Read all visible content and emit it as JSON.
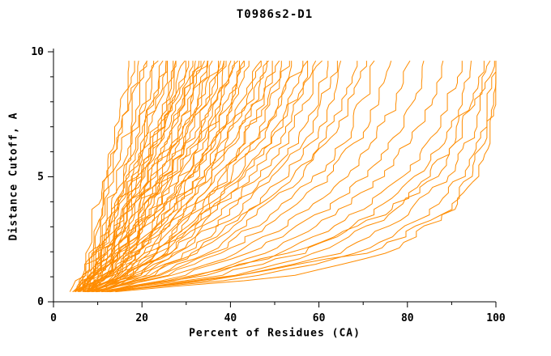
{
  "figure": {
    "title": "T0986s2-D1"
  },
  "chart_data": {
    "type": "line",
    "title": "T0986s2-D1",
    "xlabel": "Percent of Residues (CA)",
    "ylabel": "Distance Cutoff, A",
    "xlim": [
      0,
      100
    ],
    "ylim": [
      0,
      10
    ],
    "x_major_ticks": [
      0,
      20,
      40,
      60,
      80,
      100
    ],
    "x_minor_ticks": [
      10,
      30,
      50,
      70,
      90
    ],
    "y_major_ticks": [
      0,
      5,
      10
    ],
    "y_minor_ticks": [
      1,
      2,
      3,
      4,
      6,
      7,
      8,
      9
    ],
    "grid": false,
    "legend": "none",
    "colors": {
      "curve": "#ff8c00",
      "axis": "#000000",
      "background": "#ffffff"
    },
    "series_format": "each series entry lists x (percent of residues) at the y_anchors distance cutoffs",
    "y_anchors": [
      0.4,
      1,
      2,
      3.5,
      5,
      6.5,
      8,
      9.7
    ],
    "series": [
      [
        5,
        6,
        7,
        9,
        11,
        13,
        15,
        17
      ],
      [
        6,
        7,
        8,
        10,
        12,
        14,
        16,
        18
      ],
      [
        5,
        6,
        8,
        10,
        12,
        15,
        17,
        19
      ],
      [
        6,
        7,
        9,
        11,
        13,
        16,
        18,
        20
      ],
      [
        5,
        7,
        9,
        12,
        14,
        17,
        19,
        21
      ],
      [
        6,
        8,
        10,
        12,
        15,
        18,
        20,
        22
      ],
      [
        5,
        7,
        10,
        13,
        16,
        18,
        21,
        23
      ],
      [
        6,
        8,
        10,
        13,
        16,
        19,
        22,
        24
      ],
      [
        7,
        9,
        11,
        14,
        17,
        20,
        23,
        25
      ],
      [
        5,
        8,
        11,
        14,
        18,
        21,
        24,
        26
      ],
      [
        6,
        9,
        12,
        15,
        18,
        22,
        25,
        27
      ],
      [
        6,
        9,
        12,
        16,
        19,
        23,
        26,
        28
      ],
      [
        7,
        10,
        13,
        16,
        20,
        23,
        26,
        29
      ],
      [
        5,
        8,
        12,
        16,
        20,
        24,
        27,
        30
      ],
      [
        6,
        9,
        13,
        17,
        21,
        25,
        28,
        31
      ],
      [
        7,
        10,
        14,
        18,
        22,
        26,
        29,
        32
      ],
      [
        6,
        10,
        14,
        18,
        23,
        27,
        30,
        33
      ],
      [
        7,
        11,
        15,
        19,
        24,
        28,
        31,
        34
      ],
      [
        6,
        10,
        15,
        20,
        24,
        29,
        32,
        35
      ],
      [
        7,
        11,
        16,
        21,
        26,
        30,
        33,
        36
      ],
      [
        8,
        12,
        16,
        21,
        26,
        31,
        34,
        37
      ],
      [
        6,
        11,
        16,
        22,
        27,
        32,
        35,
        38
      ],
      [
        7,
        12,
        17,
        23,
        28,
        33,
        36,
        39
      ],
      [
        8,
        13,
        18,
        24,
        29,
        34,
        37,
        40
      ],
      [
        7,
        12,
        18,
        24,
        30,
        35,
        38,
        41
      ],
      [
        8,
        13,
        19,
        25,
        31,
        36,
        39,
        42
      ],
      [
        7,
        13,
        19,
        26,
        32,
        37,
        40,
        43
      ],
      [
        8,
        14,
        20,
        27,
        33,
        38,
        41,
        44
      ],
      [
        7,
        14,
        21,
        28,
        34,
        39,
        43,
        46
      ],
      [
        8,
        15,
        22,
        29,
        36,
        41,
        45,
        48
      ],
      [
        7,
        15,
        23,
        31,
        38,
        43,
        47,
        50
      ],
      [
        8,
        16,
        24,
        32,
        39,
        45,
        49,
        52
      ],
      [
        9,
        17,
        25,
        33,
        41,
        47,
        51,
        54
      ],
      [
        8,
        17,
        26,
        35,
        43,
        49,
        53,
        56
      ],
      [
        9,
        18,
        27,
        36,
        44,
        51,
        55,
        58
      ],
      [
        8,
        18,
        28,
        38,
        46,
        53,
        57,
        60
      ],
      [
        9,
        19,
        29,
        39,
        48,
        55,
        59,
        62
      ],
      [
        10,
        20,
        31,
        41,
        50,
        57,
        61,
        64
      ],
      [
        9,
        20,
        32,
        43,
        52,
        59,
        63,
        66
      ],
      [
        10,
        21,
        33,
        44,
        54,
        61,
        65,
        68
      ],
      [
        9,
        22,
        35,
        46,
        56,
        63,
        67,
        70
      ],
      [
        10,
        23,
        37,
        49,
        59,
        66,
        70,
        73
      ],
      [
        11,
        25,
        39,
        52,
        62,
        69,
        73,
        76
      ],
      [
        10,
        26,
        42,
        56,
        66,
        73,
        77,
        80
      ],
      [
        11,
        28,
        45,
        60,
        70,
        77,
        81,
        84
      ],
      [
        12,
        31,
        49,
        64,
        74,
        81,
        85,
        88
      ],
      [
        11,
        33,
        53,
        68,
        79,
        85,
        89,
        92
      ],
      [
        12,
        36,
        57,
        72,
        82,
        88,
        92,
        95
      ],
      [
        13,
        39,
        61,
        76,
        86,
        91,
        94,
        97
      ],
      [
        12,
        42,
        65,
        80,
        89,
        94,
        97,
        99
      ],
      [
        13,
        46,
        70,
        84,
        92,
        96,
        98,
        100
      ],
      [
        14,
        52,
        76,
        89,
        95,
        98,
        99,
        100
      ],
      [
        11,
        40,
        72,
        88,
        94,
        97,
        99,
        100
      ],
      [
        10,
        30,
        55,
        75,
        85,
        91,
        95,
        98
      ],
      [
        6,
        8,
        11,
        14,
        17,
        20,
        23,
        26
      ],
      [
        7,
        9,
        12,
        16,
        19,
        22,
        25,
        28
      ],
      [
        5,
        8,
        12,
        15,
        19,
        23,
        27,
        30
      ],
      [
        8,
        11,
        14,
        18,
        22,
        26,
        29,
        32
      ],
      [
        6,
        10,
        13,
        17,
        21,
        25,
        29,
        33
      ],
      [
        7,
        10,
        14,
        19,
        23,
        27,
        31,
        35
      ],
      [
        8,
        12,
        16,
        20,
        25,
        29,
        33,
        37
      ],
      [
        6,
        11,
        15,
        20,
        25,
        30,
        34,
        39
      ],
      [
        9,
        13,
        17,
        22,
        27,
        32,
        36,
        41
      ],
      [
        7,
        12,
        17,
        23,
        29,
        34,
        39,
        44
      ],
      [
        9,
        14,
        19,
        25,
        31,
        37,
        42,
        47
      ],
      [
        8,
        13,
        19,
        26,
        33,
        39,
        44,
        49
      ],
      [
        10,
        15,
        21,
        28,
        35,
        41,
        46,
        51
      ],
      [
        9,
        16,
        23,
        30,
        37,
        43,
        48,
        53
      ],
      [
        10,
        17,
        24,
        32,
        40,
        46,
        51,
        57
      ],
      [
        11,
        18,
        26,
        34,
        42,
        49,
        54,
        59
      ]
    ]
  }
}
